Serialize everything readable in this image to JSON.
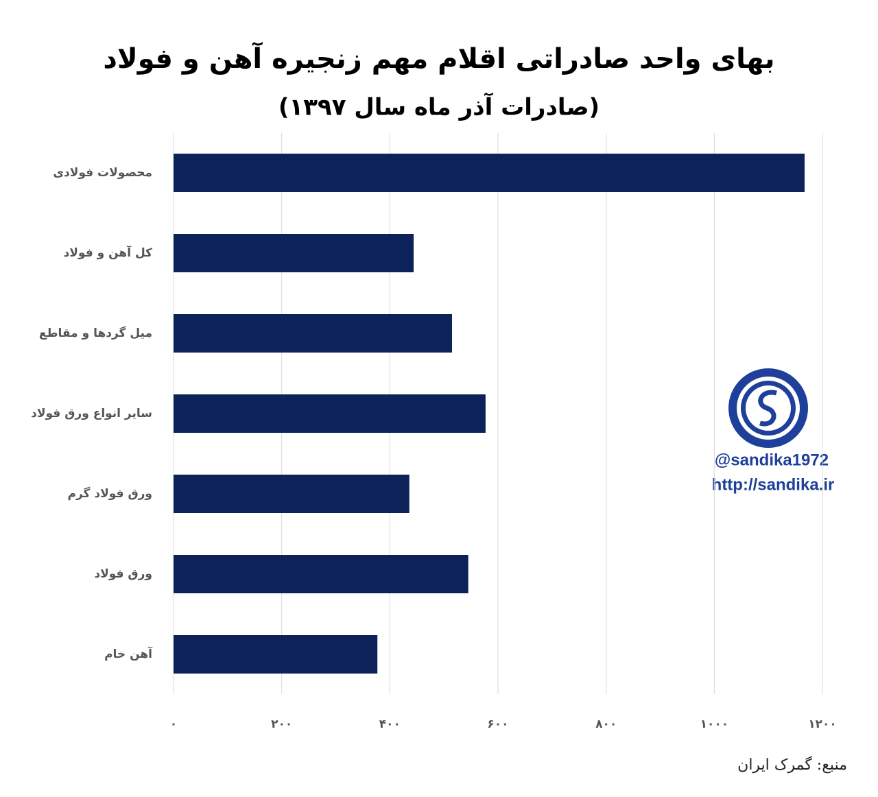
{
  "chart_data": {
    "type": "hbar",
    "title": "بهای واحد صادراتی اقلام مهم زنجیره آهن و فولاد",
    "subtitle": "(صادرات آذر ماه سال ۱۳۹۷)",
    "categories": [
      "محصولات فولادی",
      "کل آهن و فولاد",
      "میل گردها و مقاطع",
      "سایر انواع ورق فولاد",
      "ورق فولاد گرم",
      "ورق فولاد",
      "آهن خام"
    ],
    "values": [
      1167,
      444,
      515,
      577,
      436,
      545,
      377
    ],
    "color": "#0d2259",
    "xlim": [
      0,
      1200
    ],
    "xticks": [
      {
        "value": 0,
        "label": "۰"
      },
      {
        "value": 200,
        "label": "۲۰۰"
      },
      {
        "value": 400,
        "label": "۴۰۰"
      },
      {
        "value": 600,
        "label": "۶۰۰"
      },
      {
        "value": 800,
        "label": "۸۰۰"
      },
      {
        "value": 1000,
        "label": "۱۰۰۰"
      },
      {
        "value": 1200,
        "label": "۱۲۰۰"
      }
    ],
    "grid": true,
    "source": "منبع: گمرک ایران",
    "watermark": [
      "@sandika1972",
      "http://sandika.ir"
    ]
  }
}
